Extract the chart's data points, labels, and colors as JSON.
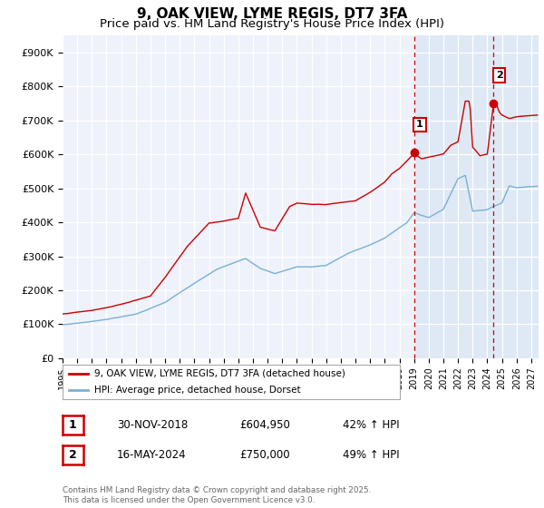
{
  "title": "9, OAK VIEW, LYME REGIS, DT7 3FA",
  "subtitle": "Price paid vs. HM Land Registry's House Price Index (HPI)",
  "ylim": [
    0,
    950000
  ],
  "yticks": [
    0,
    100000,
    200000,
    300000,
    400000,
    500000,
    600000,
    700000,
    800000,
    900000
  ],
  "ytick_labels": [
    "£0",
    "£100K",
    "£200K",
    "£300K",
    "£400K",
    "£500K",
    "£600K",
    "£700K",
    "£800K",
    "£900K"
  ],
  "xlim_start": 1995.0,
  "xlim_end": 2027.5,
  "xticks": [
    1995,
    1996,
    1997,
    1998,
    1999,
    2000,
    2001,
    2002,
    2003,
    2004,
    2005,
    2006,
    2007,
    2008,
    2009,
    2010,
    2011,
    2012,
    2013,
    2014,
    2015,
    2016,
    2017,
    2018,
    2019,
    2020,
    2021,
    2022,
    2023,
    2024,
    2025,
    2026,
    2027
  ],
  "background_color": "#ffffff",
  "plot_bg_color": "#eef2fb",
  "grid_color": "#ffffff",
  "red_line_color": "#cc0000",
  "blue_line_color": "#7ab0d4",
  "marker1_x": 2019.0,
  "marker1_y": 604950,
  "marker2_x": 2024.42,
  "marker2_y": 750000,
  "vline_color": "#cc0000",
  "shade_color": "#dce8f5",
  "legend_label_red": "9, OAK VIEW, LYME REGIS, DT7 3FA (detached house)",
  "legend_label_blue": "HPI: Average price, detached house, Dorset",
  "table_row1": [
    "1",
    "30-NOV-2018",
    "£604,950",
    "42% ↑ HPI"
  ],
  "table_row2": [
    "2",
    "16-MAY-2024",
    "£750,000",
    "49% ↑ HPI"
  ],
  "footer": "Contains HM Land Registry data © Crown copyright and database right 2025.\nThis data is licensed under the Open Government Licence v3.0.",
  "title_fontsize": 11,
  "subtitle_fontsize": 9.5
}
